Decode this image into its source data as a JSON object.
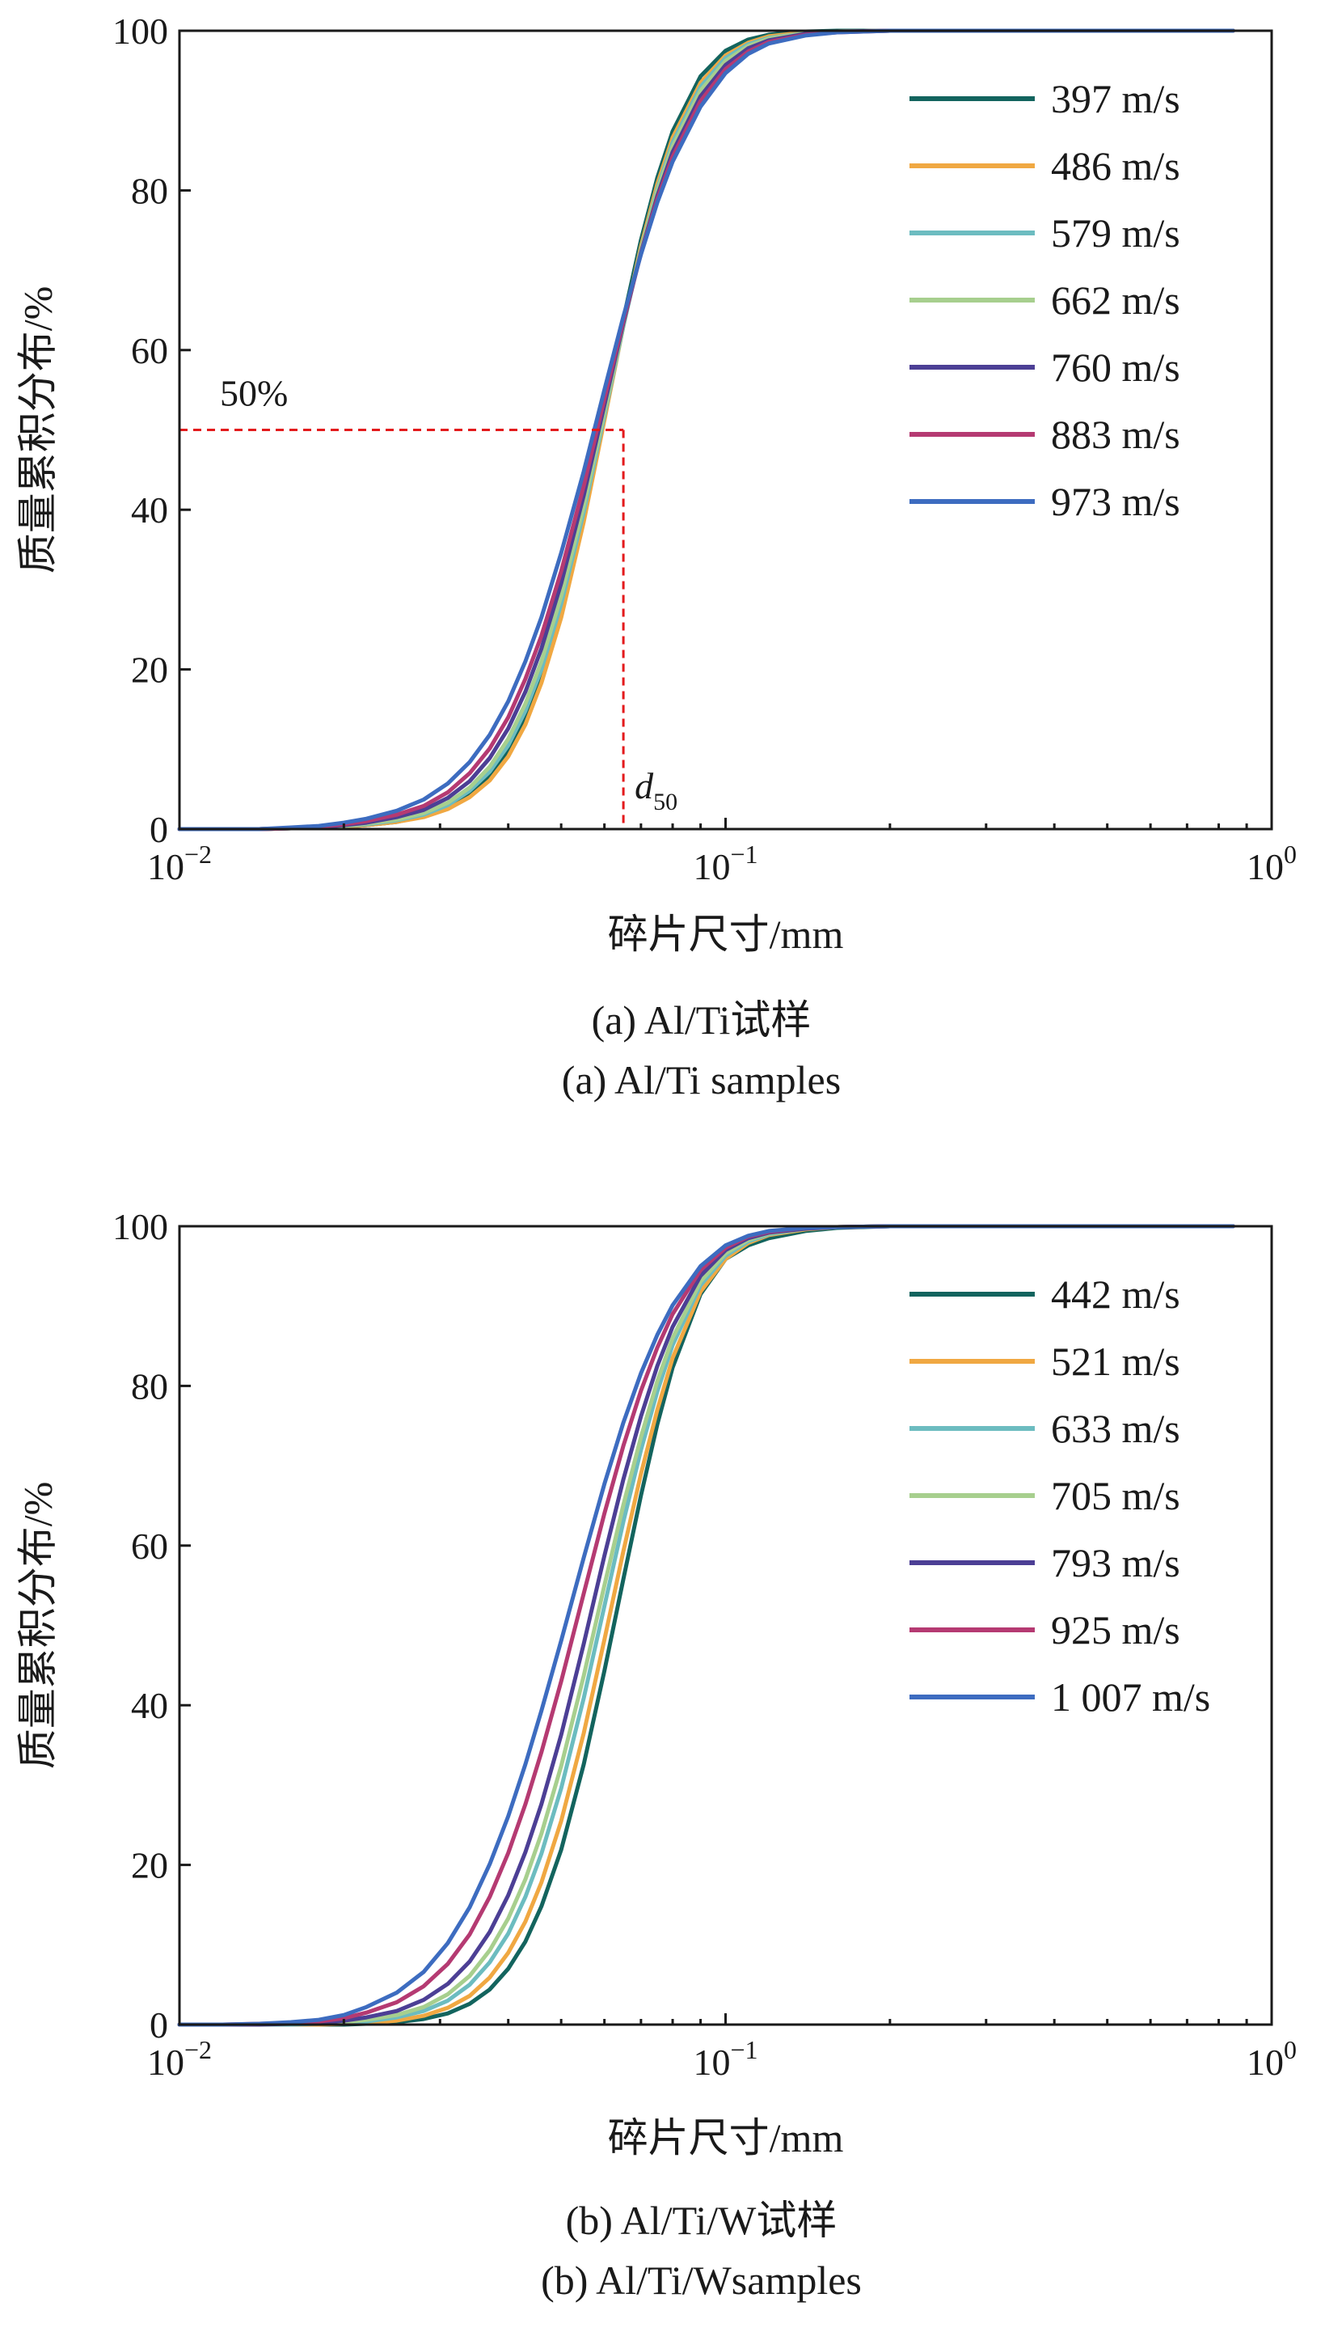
{
  "chart_data": [
    {
      "type": "line",
      "xscale": "log",
      "xlim": [
        0.01,
        1
      ],
      "ylim": [
        0,
        100
      ],
      "xticks": [
        0.01,
        0.1,
        1
      ],
      "xtick_labels": [
        {
          "base": "10",
          "exp": "−2"
        },
        {
          "base": "10",
          "exp": "−1"
        },
        {
          "base": "10",
          "exp": "0"
        }
      ],
      "yticks": [
        0,
        20,
        40,
        60,
        80,
        100
      ],
      "ytick_labels": [
        "0",
        "20",
        "40",
        "60",
        "80",
        "100"
      ],
      "xlabel": "碎片尺寸/mm",
      "ylabel": "质量累积分布/%",
      "caption_cn": "(a) Al/Ti试样",
      "caption_en": "(a) Al/Ti samples",
      "grid": false,
      "legend_position": "top-right",
      "annotations": {
        "ref_y": 50,
        "ref_x": 0.065,
        "ref_y_label": "50%",
        "ref_x_label_main": "d",
        "ref_x_label_sub": "50"
      },
      "x": [
        0.01,
        0.012,
        0.014,
        0.016,
        0.018,
        0.02,
        0.022,
        0.025,
        0.028,
        0.031,
        0.034,
        0.037,
        0.04,
        0.043,
        0.046,
        0.05,
        0.055,
        0.06,
        0.065,
        0.07,
        0.075,
        0.08,
        0.09,
        0.1,
        0.11,
        0.12,
        0.14,
        0.16,
        0.2,
        0.25,
        0.3,
        0.4,
        0.6,
        0.85
      ],
      "series": [
        {
          "name": "397 m/s",
          "color": "#13645e",
          "values": [
            0,
            0,
            0,
            0.1,
            0.2,
            0.3,
            0.5,
            0.9,
            1.6,
            2.7,
            4.3,
            6.6,
            9.9,
            14.2,
            19.5,
            27.8,
            39.7,
            52.2,
            63.9,
            73.8,
            81.6,
            87.4,
            94.3,
            97.5,
            98.9,
            99.5,
            99.9,
            100,
            100,
            100,
            100,
            100,
            100,
            100
          ]
        },
        {
          "name": "486 m/s",
          "color": "#f0a842",
          "values": [
            0,
            0,
            0,
            0.1,
            0.2,
            0.3,
            0.5,
            0.9,
            1.5,
            2.5,
            4,
            6.1,
            9.1,
            13.1,
            18.3,
            26.5,
            38.5,
            51.2,
            63,
            73,
            80.8,
            86.6,
            93.5,
            96.9,
            98.5,
            99.3,
            99.8,
            99.9,
            100,
            100,
            100,
            100,
            100,
            100
          ]
        },
        {
          "name": "579 m/s",
          "color": "#6cbcc0",
          "values": [
            0,
            0,
            0,
            0.1,
            0.2,
            0.4,
            0.6,
            1.1,
            1.8,
            3,
            4.8,
            7.2,
            10.5,
            14.8,
            20,
            28.2,
            39.7,
            51.8,
            63,
            72.6,
            80.2,
            86,
            93,
            96.6,
            98.3,
            99.1,
            99.7,
            99.9,
            100,
            100,
            100,
            100,
            100,
            100
          ]
        },
        {
          "name": "662 m/s",
          "color": "#a7cf8e",
          "values": [
            0,
            0,
            0,
            0.1,
            0.2,
            0.4,
            0.7,
            1.2,
            2,
            3.3,
            5.2,
            7.8,
            11.3,
            15.7,
            21,
            29.2,
            40.5,
            52.3,
            63.2,
            72.5,
            79.9,
            85.5,
            92.5,
            96.2,
            98.1,
            99,
            99.7,
            99.9,
            100,
            100,
            100,
            100,
            100,
            100
          ]
        },
        {
          "name": "760 m/s",
          "color": "#4c3f95",
          "values": [
            0,
            0,
            0,
            0.1,
            0.2,
            0.5,
            0.8,
            1.5,
            2.4,
            3.9,
            6,
            8.9,
            12.6,
            17.2,
            22.6,
            30.8,
            41.8,
            53.1,
            63.4,
            72.2,
            79.3,
            84.8,
            91.8,
            95.7,
            97.8,
            98.8,
            99.6,
            99.9,
            100,
            100,
            100,
            100,
            100,
            100
          ]
        },
        {
          "name": "883 m/s",
          "color": "#b53a72",
          "values": [
            0,
            0,
            0,
            0.1,
            0.3,
            0.6,
            1,
            1.8,
            2.9,
            4.6,
            7,
            10.1,
            14,
            18.8,
            24.2,
            32.3,
            43,
            53.9,
            63.7,
            72.1,
            78.9,
            84.2,
            91.2,
            95.2,
            97.4,
            98.6,
            99.5,
            99.8,
            100,
            100,
            100,
            100,
            100,
            100
          ]
        },
        {
          "name": "973 m/s",
          "color": "#3d6cc0",
          "values": [
            0,
            0,
            0,
            0.2,
            0.4,
            0.8,
            1.3,
            2.3,
            3.7,
            5.7,
            8.4,
            11.8,
            16,
            21,
            26.5,
            34.6,
            44.8,
            55,
            64.2,
            72,
            78.5,
            83.6,
            90.5,
            94.7,
            97.1,
            98.4,
            99.4,
            99.8,
            100,
            100,
            100,
            100,
            100,
            100
          ]
        }
      ]
    },
    {
      "type": "line",
      "xscale": "log",
      "xlim": [
        0.01,
        1
      ],
      "ylim": [
        0,
        100
      ],
      "xticks": [
        0.01,
        0.1,
        1
      ],
      "xtick_labels": [
        {
          "base": "10",
          "exp": "−2"
        },
        {
          "base": "10",
          "exp": "−1"
        },
        {
          "base": "10",
          "exp": "0"
        }
      ],
      "yticks": [
        0,
        20,
        40,
        60,
        80,
        100
      ],
      "ytick_labels": [
        "0",
        "20",
        "40",
        "60",
        "80",
        "100"
      ],
      "xlabel": "碎片尺寸/mm",
      "ylabel": "质量累积分布/%",
      "caption_cn": "(b) Al/Ti/W试样",
      "caption_en": "(b) Al/Ti/Wsamples",
      "grid": false,
      "legend_position": "top-right",
      "x": [
        0.01,
        0.012,
        0.014,
        0.016,
        0.018,
        0.02,
        0.022,
        0.025,
        0.028,
        0.031,
        0.034,
        0.037,
        0.04,
        0.043,
        0.046,
        0.05,
        0.055,
        0.06,
        0.065,
        0.07,
        0.075,
        0.08,
        0.09,
        0.1,
        0.11,
        0.12,
        0.14,
        0.16,
        0.2,
        0.25,
        0.3,
        0.4,
        0.6,
        0.85
      ],
      "series": [
        {
          "name": "442 m/s",
          "color": "#13645e",
          "values": [
            0,
            0,
            0,
            0,
            0,
            0,
            0.1,
            0.3,
            0.7,
            1.4,
            2.6,
            4.4,
            7,
            10.4,
            14.8,
            21.9,
            32.6,
            44.3,
            55.8,
            66.3,
            75.2,
            82.3,
            91.5,
            95.9,
            97.6,
            98.5,
            99.4,
            99.8,
            100,
            100,
            100,
            100,
            100,
            100
          ]
        },
        {
          "name": "521 m/s",
          "color": "#f0a842",
          "values": [
            0,
            0,
            0,
            0,
            0,
            0.1,
            0.2,
            0.5,
            1.1,
            2.1,
            3.6,
            5.9,
            9,
            12.9,
            17.8,
            25.5,
            36.5,
            48.2,
            59.3,
            69,
            77,
            83.5,
            91.8,
            95.9,
            97.9,
            98.9,
            99.6,
            99.9,
            100,
            100,
            100,
            100,
            100,
            100
          ]
        },
        {
          "name": "633 m/s",
          "color": "#6cbcc0",
          "values": [
            0,
            0,
            0,
            0,
            0.1,
            0.2,
            0.4,
            0.9,
            1.7,
            3,
            5,
            7.8,
            11.4,
            16,
            21.4,
            29.6,
            40.9,
            52.4,
            63,
            72,
            79.3,
            85.1,
            92.6,
            96.3,
            98.1,
            99,
            99.7,
            99.9,
            100,
            100,
            100,
            100,
            100,
            100
          ]
        },
        {
          "name": "705 m/s",
          "color": "#a7cf8e",
          "values": [
            0,
            0,
            0,
            0.1,
            0.2,
            0.3,
            0.6,
            1.2,
            2.2,
            3.8,
            6.1,
            9.3,
            13.3,
            18.2,
            23.9,
            32.4,
            43.7,
            55,
            65.1,
            73.6,
            80.6,
            86,
            93.1,
            96.6,
            98.3,
            99.1,
            99.7,
            99.9,
            100,
            100,
            100,
            100,
            100,
            100
          ]
        },
        {
          "name": "793 m/s",
          "color": "#4c3f95",
          "values": [
            0,
            0,
            0,
            0.1,
            0.2,
            0.5,
            0.9,
            1.7,
            3.1,
            5.1,
            7.9,
            11.6,
            16.2,
            21.6,
            27.6,
            36.3,
            47.7,
            58.7,
            68.3,
            76.2,
            82.5,
            87.4,
            93.8,
            97,
            98.5,
            99.2,
            99.7,
            99.9,
            100,
            100,
            100,
            100,
            100,
            100
          ]
        },
        {
          "name": "925 m/s",
          "color": "#b53a72",
          "values": [
            0,
            0,
            0.1,
            0.2,
            0.4,
            0.8,
            1.5,
            2.8,
            4.8,
            7.6,
            11.3,
            16,
            21.5,
            27.6,
            34.1,
            43,
            54,
            64,
            72.5,
            79.4,
            84.8,
            89,
            94.5,
            97.3,
            98.7,
            99.3,
            99.8,
            99.9,
            100,
            100,
            100,
            100,
            100,
            100
          ]
        },
        {
          "name": "1 007 m/s",
          "color": "#3d6cc0",
          "values": [
            0,
            0,
            0.1,
            0.3,
            0.6,
            1.2,
            2.2,
            4,
            6.6,
            10.2,
            14.7,
            20.1,
            26.1,
            32.6,
            39.3,
            48.1,
            58.5,
            67.7,
            75.4,
            81.6,
            86.4,
            90.1,
            95,
            97.6,
            98.8,
            99.4,
            99.8,
            99.9,
            100,
            100,
            100,
            100,
            100,
            100
          ]
        }
      ]
    }
  ]
}
